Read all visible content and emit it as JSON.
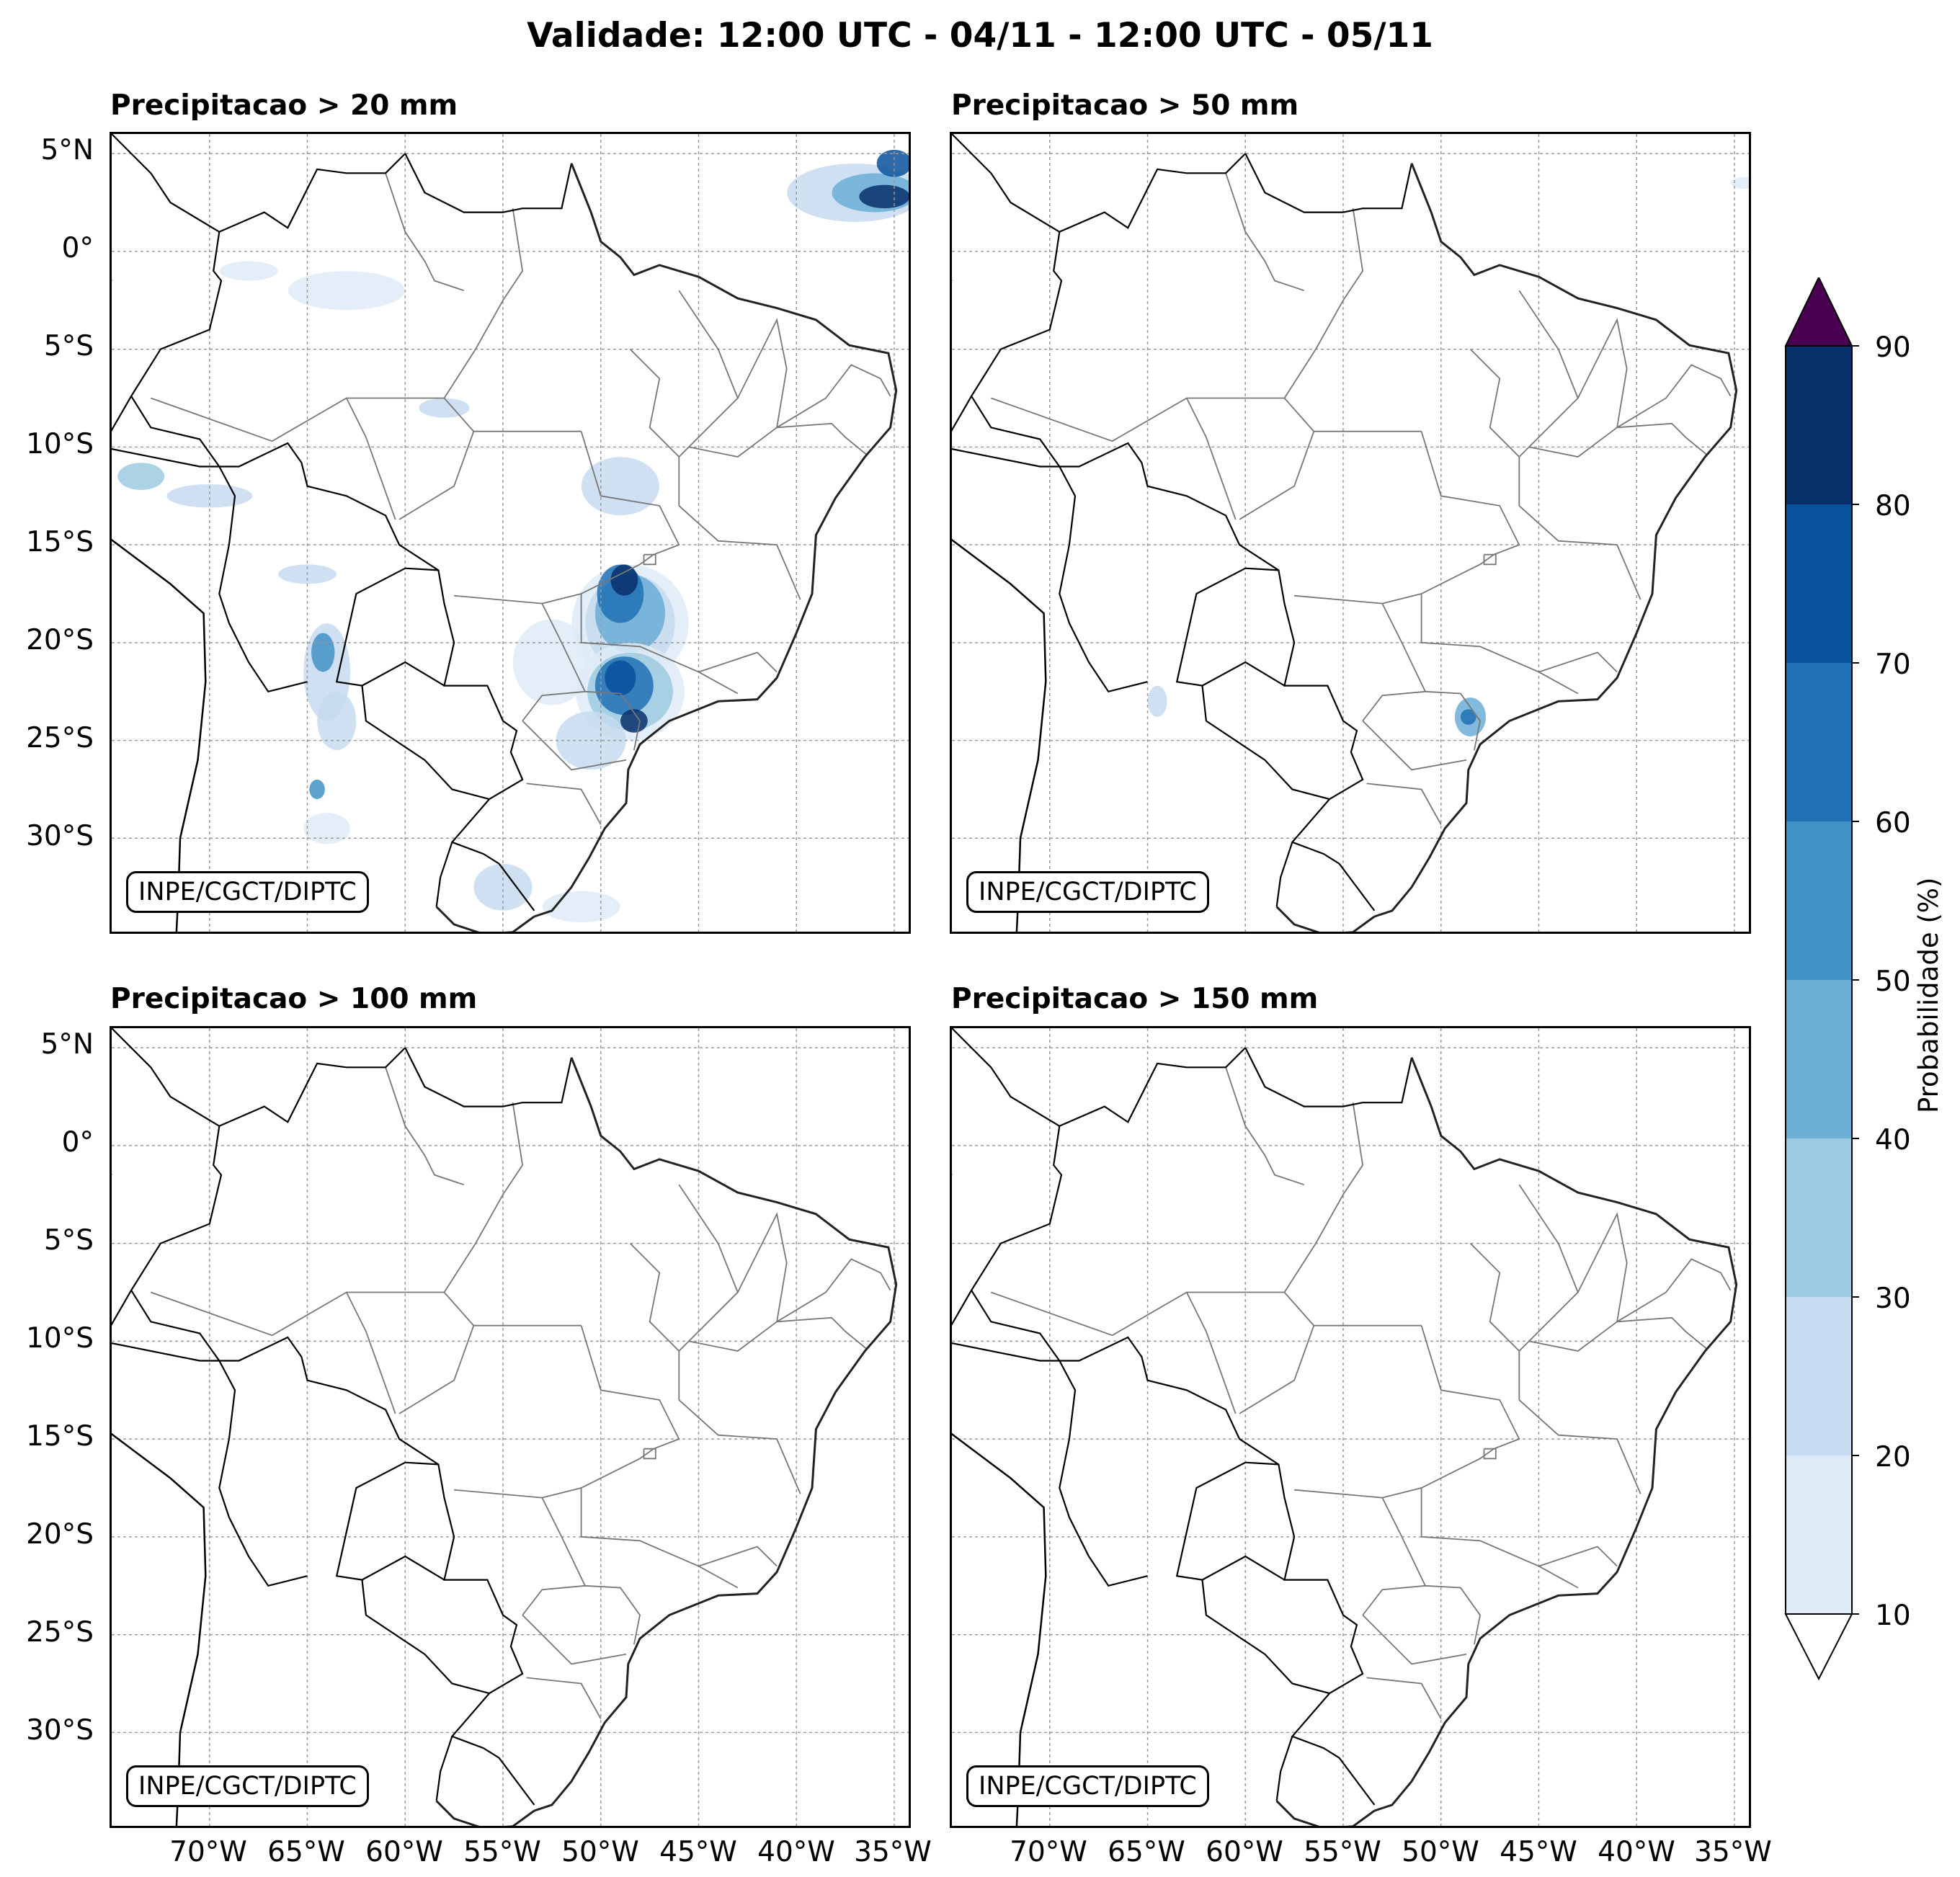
{
  "title": "Validade: 12:00 UTC - 04/11 - 12:00 UTC - 05/11",
  "panels": [
    {
      "title": "Precipitacao > 20 mm",
      "credit": "INPE/CGCT/DIPTC",
      "intensity": 1.0
    },
    {
      "title": "Precipitacao > 50 mm",
      "credit": "INPE/CGCT/DIPTC",
      "intensity": 0.35
    },
    {
      "title": "Precipitacao > 100 mm",
      "credit": "INPE/CGCT/DIPTC",
      "intensity": 0
    },
    {
      "title": "Precipitacao > 150 mm",
      "credit": "INPE/CGCT/DIPTC",
      "intensity": 0
    }
  ],
  "lat_labels": [
    "5°N",
    "0°",
    "5°S",
    "10°S",
    "15°S",
    "20°S",
    "25°S",
    "30°S"
  ],
  "lon_labels": [
    "70°W",
    "65°W",
    "60°W",
    "55°W",
    "50°W",
    "45°W",
    "40°W",
    "35°W"
  ],
  "colorbar": {
    "label": "Probabilidade (%)",
    "ticks": [
      "10",
      "20",
      "30",
      "40",
      "50",
      "60",
      "70",
      "80",
      "90"
    ],
    "colors": [
      "#deebf7",
      "#c6dbef",
      "#9ecae1",
      "#6baed6",
      "#4292c6",
      "#2171b5",
      "#08519c",
      "#08306b"
    ],
    "over_color": "#4a0050",
    "under_color": "#ffffff"
  }
}
